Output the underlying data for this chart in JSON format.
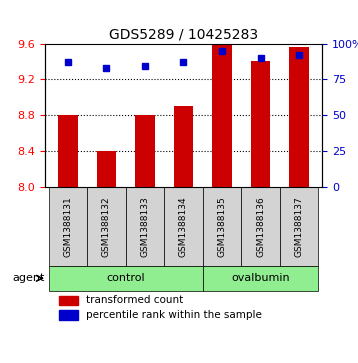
{
  "title": "GDS5289 / 10425283",
  "samples": [
    "GSM1388131",
    "GSM1388132",
    "GSM1388133",
    "GSM1388134",
    "GSM1388135",
    "GSM1388136",
    "GSM1388137"
  ],
  "bar_values": [
    8.8,
    8.4,
    8.8,
    8.9,
    9.6,
    9.4,
    9.56
  ],
  "bar_base": 8.0,
  "percentile_values": [
    87,
    83,
    84,
    87,
    95,
    90,
    92
  ],
  "bar_color": "#cc0000",
  "dot_color": "#0000cc",
  "ylim_left": [
    8.0,
    9.6
  ],
  "ylim_right": [
    0,
    100
  ],
  "yticks_left": [
    8.0,
    8.4,
    8.8,
    9.2,
    9.6
  ],
  "yticks_right": [
    0,
    25,
    50,
    75,
    100
  ],
  "ytick_labels_right": [
    "0",
    "25",
    "50",
    "75",
    "100%"
  ],
  "groups": [
    {
      "label": "control",
      "start": 0,
      "end": 4,
      "color": "#90ee90"
    },
    {
      "label": "ovalbumin",
      "start": 4,
      "end": 7,
      "color": "#90ee90"
    }
  ],
  "agent_label": "agent",
  "legend_bar_label": "transformed count",
  "legend_dot_label": "percentile rank within the sample",
  "grid_color": "black",
  "background_color": "#ffffff",
  "plot_bg_color": "#ffffff",
  "label_area_bg": "#d3d3d3",
  "bar_width": 0.5
}
